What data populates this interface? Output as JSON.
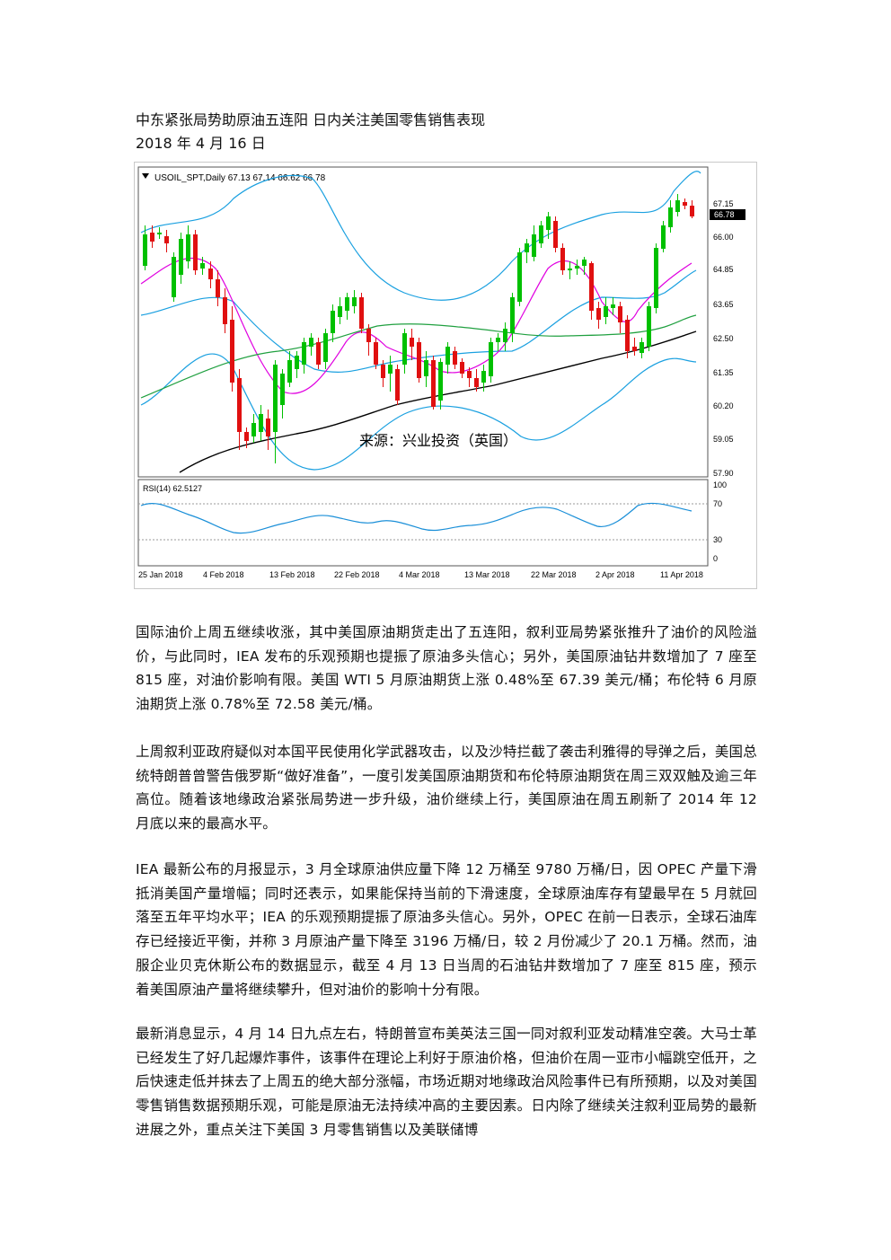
{
  "document": {
    "title": "中东紧张局势助原油五连阳  日内关注美国零售销售表现",
    "date": "2018 年 4 月 16 日"
  },
  "chart": {
    "header": "USOIL_SPT,Daily  67.13 67.14 66.62 66.78",
    "watermark": "来源：兴业投资（英国）",
    "last_price_tag": "66.78",
    "price_ticks": [
      "67.15",
      "66.00",
      "64.85",
      "63.65",
      "62.50",
      "61.35",
      "60.20",
      "59.05",
      "57.90"
    ],
    "rsi_label": "RSI(14) 62.5127",
    "rsi_ticks": [
      "100",
      "70",
      "30",
      "0"
    ],
    "date_ticks": [
      "25 Jan 2018",
      "4 Feb 2018",
      "13 Feb 2018",
      "22 Feb 2018",
      "4 Mar 2018",
      "13 Mar 2018",
      "22 Mar 2018",
      "2 Apr 2018",
      "11 Apr 2018"
    ],
    "colors": {
      "up": "#00c000",
      "down": "#e01010",
      "bollinger": "#1aa0e0",
      "ma_fast": "#e000e0",
      "ma_mid": "#20a040",
      "ma_slow": "#000000",
      "rsi": "#1a8fd8"
    }
  },
  "chart_data": {
    "type": "candlestick",
    "title": "USOIL_SPT,Daily",
    "ylim": [
      57.9,
      67.5
    ],
    "rsi_value": 62.5127,
    "last_ohlc": {
      "open": 67.13,
      "high": 67.14,
      "low": 66.62,
      "close": 66.78
    }
  },
  "paragraphs": [
    "国际油价上周五继续收涨，其中美国原油期货走出了五连阳，叙利亚局势紧张推升了油价的风险溢价，与此同时，IEA 发布的乐观预期也提振了原油多头信心；另外，美国原油钻井数增加了 7 座至 815 座，对油价影响有限。美国 WTI 5 月原油期货上涨 0.48%至 67.39 美元/桶；布伦特 6 月原油期货上涨 0.78%至 72.58 美元/桶。",
    "上周叙利亚政府疑似对本国平民使用化学武器攻击，以及沙特拦截了袭击利雅得的导弹之后，美国总统特朗普曾警告俄罗斯“做好准备”，一度引发美国原油期货和布伦特原油期货在周三双双触及逾三年高位。随着该地缘政治紧张局势进一步升级，油价继续上行，美国原油在周五刷新了 2014 年 12 月底以来的最高水平。",
    "IEA 最新公布的月报显示，3 月全球原油供应量下降 12 万桶至 9780 万桶/日，因 OPEC 产量下滑抵消美国产量增幅；同时还表示，如果能保持当前的下滑速度，全球原油库存有望最早在 5 月就回落至五年平均水平；IEA 的乐观预期提振了原油多头信心。另外，OPEC 在前一日表示，全球石油库存已经接近平衡，并称 3 月原油产量下降至 3196 万桶/日，较 2 月份减少了 20.1 万桶。然而，油服企业贝克休斯公布的数据显示，截至 4 月 13 日当周的石油钻井数增加了 7 座至 815 座，预示着美国原油产量将继续攀升，但对油价的影响十分有限。",
    "最新消息显示，4 月 14 日九点左右，特朗普宣布美英法三国一同对叙利亚发动精准空袭。大马士革已经发生了好几起爆炸事件，该事件在理论上利好于原油价格，但油价在周一亚市小幅跳空低开，之后快速走低并抹去了上周五的绝大部分涨幅，市场近期对地缘政治风险事件已有所预期，以及对美国零售销售数据预期乐观，可能是原油无法持续冲高的主要因素。日内除了继续关注叙利亚局势的最新进展之外，重点关注下美国 3 月零售销售以及美联储博"
  ]
}
